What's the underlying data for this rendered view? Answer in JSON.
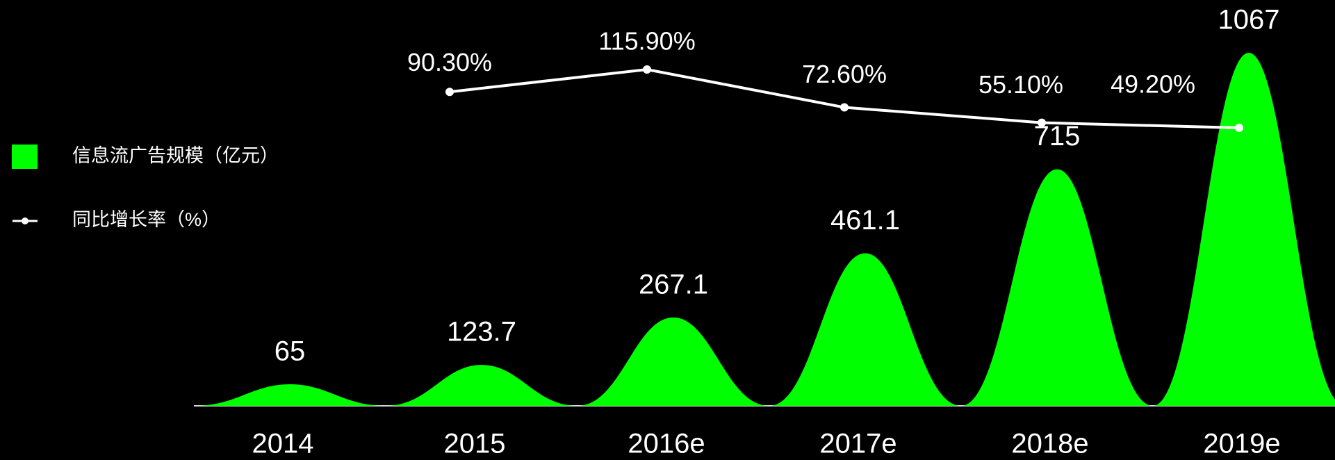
{
  "chart_data": {
    "type": "bar",
    "categories": [
      "2014",
      "2015",
      "2016e",
      "2017e",
      "2018e",
      "2019e"
    ],
    "series": [
      {
        "name": "信息流广告规模（亿元）",
        "type": "bar",
        "color": "#00ff00",
        "values": [
          65,
          123.7,
          267.1,
          461.1,
          715,
          1067
        ]
      },
      {
        "name": "同比增长率（%）",
        "type": "line",
        "color": "#ffffff",
        "values": [
          null,
          90.3,
          115.9,
          72.6,
          55.1,
          49.2
        ],
        "value_labels": [
          null,
          "90.30%",
          "115.90%",
          "72.60%",
          "55.10%",
          "49.20%"
        ]
      }
    ],
    "legend": "left"
  }
}
